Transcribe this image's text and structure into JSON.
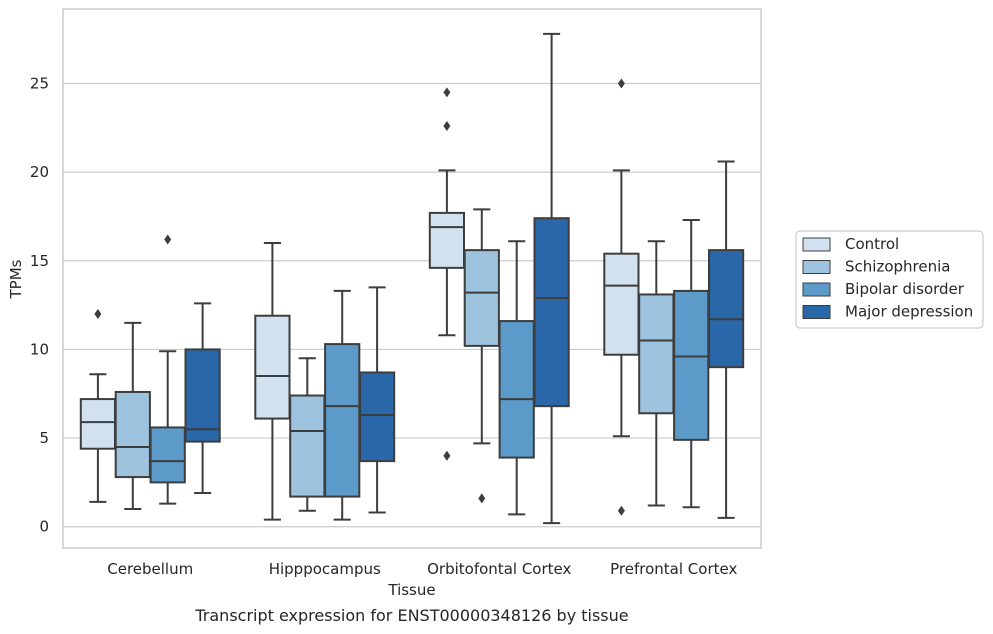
{
  "chart_data": {
    "type": "box",
    "xlabel": "Tissue",
    "ylabel": "TPMs",
    "ylim": [
      -1.2,
      29.2
    ],
    "yticks": [
      0,
      5,
      10,
      15,
      20,
      25
    ],
    "categories": [
      "Cerebellum",
      "Hipppocampus",
      "Orbitofontal Cortex",
      "Prefrontal Cortex"
    ],
    "grid": "horizontal",
    "legend_position": "right",
    "series": [
      {
        "name": "Control",
        "color": "#d1e1f0",
        "boxes": [
          {
            "whislo": 1.4,
            "q1": 4.4,
            "med": 5.9,
            "q3": 7.2,
            "whishi": 8.6,
            "fliers": [
              12.0
            ]
          },
          {
            "whislo": 0.4,
            "q1": 6.1,
            "med": 8.5,
            "q3": 11.9,
            "whishi": 16.0,
            "fliers": []
          },
          {
            "whislo": 10.8,
            "q1": 14.6,
            "med": 16.9,
            "q3": 17.7,
            "whishi": 20.1,
            "fliers": [
              24.5,
              22.6,
              4.0
            ]
          },
          {
            "whislo": 5.1,
            "q1": 9.7,
            "med": 13.6,
            "q3": 15.4,
            "whishi": 20.1,
            "fliers": [
              25.0,
              0.9
            ]
          }
        ]
      },
      {
        "name": "Schizophrenia",
        "color": "#9dc3de",
        "boxes": [
          {
            "whislo": 1.0,
            "q1": 2.8,
            "med": 4.5,
            "q3": 7.6,
            "whishi": 11.5,
            "fliers": []
          },
          {
            "whislo": 0.9,
            "q1": 1.7,
            "med": 5.4,
            "q3": 7.4,
            "whishi": 9.5,
            "fliers": []
          },
          {
            "whislo": 4.7,
            "q1": 10.2,
            "med": 13.2,
            "q3": 15.6,
            "whishi": 17.9,
            "fliers": [
              1.6
            ]
          },
          {
            "whislo": 1.2,
            "q1": 6.4,
            "med": 10.5,
            "q3": 13.1,
            "whishi": 16.1,
            "fliers": []
          }
        ]
      },
      {
        "name": "Bipolar disorder",
        "color": "#5b9ac9",
        "boxes": [
          {
            "whislo": 1.3,
            "q1": 2.5,
            "med": 3.7,
            "q3": 5.6,
            "whishi": 9.9,
            "fliers": [
              16.2
            ]
          },
          {
            "whislo": 0.4,
            "q1": 1.7,
            "med": 6.8,
            "q3": 10.3,
            "whishi": 13.3,
            "fliers": []
          },
          {
            "whislo": 0.7,
            "q1": 3.9,
            "med": 7.2,
            "q3": 11.6,
            "whishi": 16.1,
            "fliers": []
          },
          {
            "whislo": 1.1,
            "q1": 4.9,
            "med": 9.6,
            "q3": 13.3,
            "whishi": 17.3,
            "fliers": []
          }
        ]
      },
      {
        "name": "Major depression",
        "color": "#2a67a8",
        "boxes": [
          {
            "whislo": 1.9,
            "q1": 4.8,
            "med": 5.5,
            "q3": 10.0,
            "whishi": 12.6,
            "fliers": []
          },
          {
            "whislo": 0.8,
            "q1": 3.7,
            "med": 6.3,
            "q3": 8.7,
            "whishi": 13.5,
            "fliers": []
          },
          {
            "whislo": 0.2,
            "q1": 6.8,
            "med": 12.9,
            "q3": 17.4,
            "whishi": 27.8,
            "fliers": []
          },
          {
            "whislo": 0.5,
            "q1": 9.0,
            "med": 11.7,
            "q3": 15.6,
            "whishi": 20.6,
            "fliers": []
          }
        ]
      }
    ]
  },
  "caption": "Transcript expression for ENST00000348126 by tissue"
}
